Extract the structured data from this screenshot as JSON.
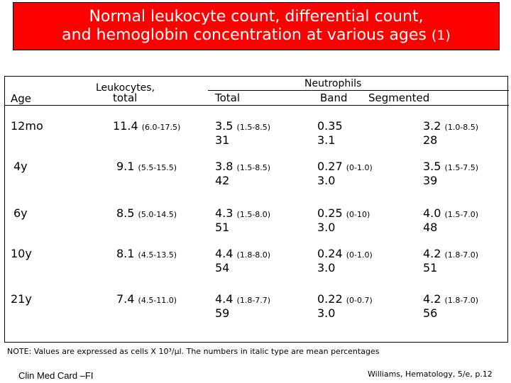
{
  "title": {
    "line1": "Normal leukocyte count, differential count,",
    "line2_main": "and hemoglobin concentration at various ages ",
    "line2_suffix": "(1)"
  },
  "table": {
    "headers": {
      "neutrophils": "Neutrophils",
      "leukocytes": "Leukocytes,",
      "total_under": "total",
      "age": "Age",
      "total": "Total",
      "band": "Band",
      "segmented": "Segmented"
    },
    "rows": [
      {
        "age": "12mo",
        "leuk": "11.4",
        "leuk_range": "(6.0-17.5)",
        "total": "3.5",
        "total_range": "(1.5-8.5)",
        "total_pct": "31",
        "band": "0.35",
        "band_range": "",
        "band_pct": "3.1",
        "seg": "3.2",
        "seg_range": "(1.0-8.5)",
        "seg_pct": "28"
      },
      {
        "age": "4y",
        "leuk": "9.1",
        "leuk_range": "(5.5-15.5)",
        "total": "3.8",
        "total_range": "(1.5-8.5)",
        "total_pct": "42",
        "band": "0.27",
        "band_range": "(0-1.0)",
        "band_pct": "3.0",
        "seg": "3.5",
        "seg_range": "(1.5-7.5)",
        "seg_pct": "39"
      },
      {
        "age": "6y",
        "leuk": "8.5",
        "leuk_range": "(5.0-14.5)",
        "total": "4.3",
        "total_range": "(1.5-8.0)",
        "total_pct": "51",
        "band": "0.25",
        "band_range": "(0-10)",
        "band_pct": "3.0",
        "seg": "4.0",
        "seg_range": "(1.5-7.0)",
        "seg_pct": "48"
      },
      {
        "age": "10y",
        "leuk": "8.1",
        "leuk_range": "(4.5-13.5)",
        "total": "4.4",
        "total_range": "(1.8-8.0)",
        "total_pct": "54",
        "band": "0.24",
        "band_range": "(0-1.0)",
        "band_pct": "3.0",
        "seg": "4.2",
        "seg_range": "(1.8-7.0)",
        "seg_pct": "51"
      },
      {
        "age": "21y",
        "leuk": "7.4",
        "leuk_range": "(4.5-11.0)",
        "total": "4.4",
        "total_range": "(1.8-7.7)",
        "total_pct": "59",
        "band": "0.22",
        "band_range": "(0-0.7)",
        "band_pct": "3.0",
        "seg": "4.2",
        "seg_range": "(1.8-7.0)",
        "seg_pct": "56"
      }
    ]
  },
  "note": "NOTE: Values are expressed as cells X 10³/μl. The numbers in italic type are mean percentages",
  "footer": {
    "left": "Clin Med Card –FI",
    "right": "Williams, Hematology, 5/e, p.12"
  },
  "colors": {
    "title_bg": "#ff0000",
    "title_text": "#ffffff"
  }
}
